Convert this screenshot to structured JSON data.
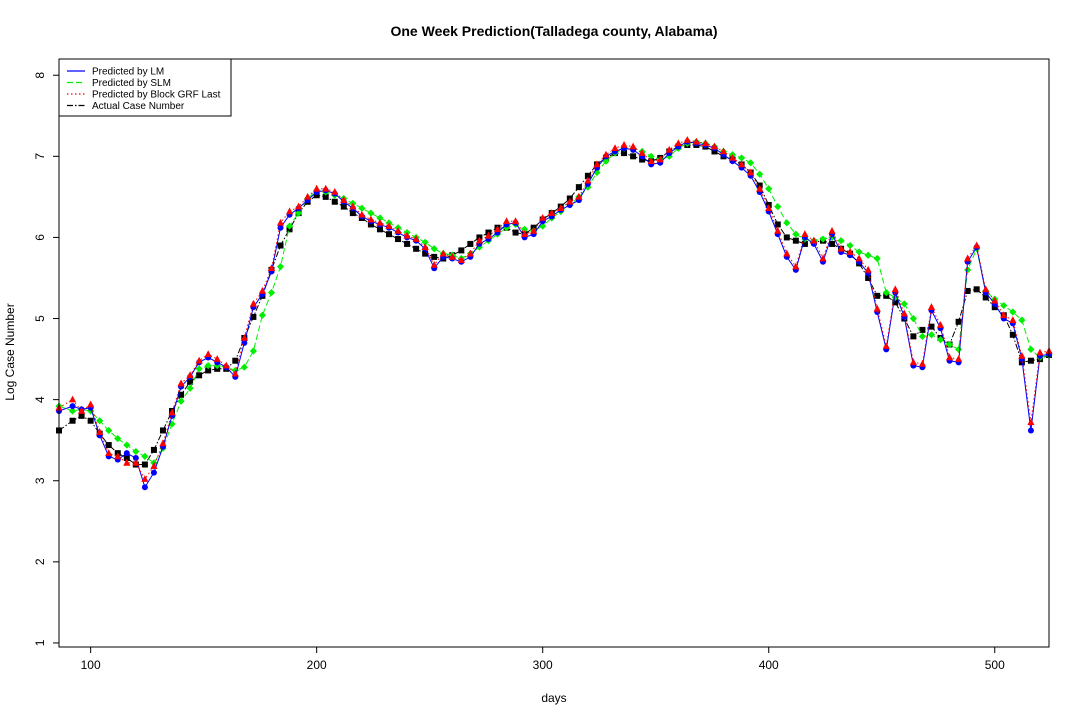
{
  "chart_data": {
    "type": "scatter",
    "title": "One Week Prediction(Talladega county, Alabama)",
    "xlabel": "days",
    "ylabel": "Log Case Number",
    "xlim": [
      86,
      524
    ],
    "ylim": [
      0.95,
      8.2
    ],
    "x_ticks": [
      100,
      200,
      300,
      400,
      500
    ],
    "y_ticks": [
      1,
      2,
      3,
      4,
      5,
      6,
      7,
      8
    ],
    "grid": false,
    "legend_position": "top-left",
    "series": [
      {
        "name": "Actual Case Number",
        "color": "#000000",
        "marker": "square",
        "line": "dashdot",
        "x": [
          86,
          92,
          96,
          100,
          104,
          108,
          112,
          116,
          120,
          124,
          128,
          132,
          136,
          140,
          144,
          148,
          152,
          156,
          160,
          164,
          168,
          172,
          176,
          180,
          184,
          188,
          192,
          196,
          200,
          204,
          208,
          212,
          216,
          220,
          224,
          228,
          232,
          236,
          240,
          244,
          248,
          252,
          256,
          260,
          264,
          268,
          272,
          276,
          280,
          284,
          288,
          292,
          296,
          300,
          304,
          308,
          312,
          316,
          320,
          324,
          328,
          332,
          336,
          340,
          344,
          348,
          352,
          356,
          360,
          364,
          368,
          372,
          376,
          380,
          384,
          388,
          392,
          396,
          400,
          404,
          408,
          412,
          416,
          420,
          424,
          428,
          432,
          436,
          440,
          444,
          448,
          452,
          456,
          460,
          464,
          468,
          472,
          476,
          480,
          484,
          488,
          492,
          496,
          500,
          504,
          508,
          512,
          516,
          520,
          524
        ],
        "y": [
          3.62,
          3.74,
          3.8,
          3.74,
          3.58,
          3.44,
          3.34,
          3.28,
          3.2,
          3.2,
          3.38,
          3.62,
          3.86,
          4.06,
          4.22,
          4.3,
          4.36,
          4.38,
          4.38,
          4.48,
          4.76,
          5.02,
          5.28,
          5.6,
          5.9,
          6.1,
          6.3,
          6.44,
          6.52,
          6.5,
          6.44,
          6.38,
          6.3,
          6.24,
          6.16,
          6.1,
          6.04,
          5.98,
          5.92,
          5.86,
          5.8,
          5.76,
          5.74,
          5.78,
          5.84,
          5.92,
          6.0,
          6.06,
          6.12,
          6.12,
          6.06,
          6.04,
          6.12,
          6.22,
          6.3,
          6.38,
          6.48,
          6.62,
          6.76,
          6.9,
          6.98,
          7.04,
          7.04,
          7.0,
          6.96,
          6.94,
          6.98,
          7.06,
          7.12,
          7.14,
          7.14,
          7.12,
          7.06,
          7.0,
          6.96,
          6.9,
          6.8,
          6.64,
          6.4,
          6.16,
          6.0,
          5.96,
          5.92,
          5.94,
          5.96,
          5.92,
          5.86,
          5.8,
          5.68,
          5.5,
          5.28,
          5.28,
          5.2,
          5.0,
          4.78,
          4.86,
          4.9,
          4.76,
          4.68,
          4.96,
          5.34,
          5.36,
          5.26,
          5.14,
          5.04,
          4.8,
          4.46,
          4.48,
          4.5,
          4.55
        ]
      },
      {
        "name": "Predicted by SLM",
        "color": "#00ee00",
        "marker": "diamond",
        "line": "dashed",
        "x": [
          86,
          92,
          96,
          100,
          104,
          108,
          112,
          116,
          120,
          124,
          128,
          132,
          136,
          140,
          144,
          148,
          152,
          156,
          160,
          164,
          168,
          172,
          176,
          180,
          184,
          188,
          192,
          196,
          200,
          204,
          208,
          212,
          216,
          220,
          224,
          228,
          232,
          236,
          240,
          244,
          248,
          252,
          256,
          260,
          264,
          268,
          272,
          276,
          280,
          284,
          288,
          292,
          296,
          300,
          304,
          308,
          312,
          316,
          320,
          324,
          328,
          332,
          336,
          340,
          344,
          348,
          352,
          356,
          360,
          364,
          368,
          372,
          376,
          380,
          384,
          388,
          392,
          396,
          400,
          404,
          408,
          412,
          416,
          420,
          424,
          428,
          432,
          436,
          440,
          444,
          448,
          452,
          456,
          460,
          464,
          468,
          472,
          476,
          480,
          484,
          488,
          492,
          496,
          500,
          504,
          508,
          512,
          516,
          520,
          524
        ],
        "y": [
          3.92,
          3.86,
          3.88,
          3.86,
          3.74,
          3.62,
          3.52,
          3.44,
          3.36,
          3.3,
          3.22,
          3.4,
          3.7,
          3.98,
          4.14,
          4.38,
          4.42,
          4.42,
          4.4,
          4.36,
          4.4,
          4.6,
          5.04,
          5.32,
          5.64,
          6.14,
          6.3,
          6.48,
          6.58,
          6.56,
          6.52,
          6.48,
          6.42,
          6.36,
          6.3,
          6.24,
          6.18,
          6.12,
          6.06,
          6.0,
          5.94,
          5.86,
          5.8,
          5.78,
          5.74,
          5.8,
          5.88,
          5.96,
          6.04,
          6.12,
          6.16,
          6.1,
          6.08,
          6.14,
          6.24,
          6.32,
          6.4,
          6.5,
          6.62,
          6.8,
          6.94,
          7.04,
          7.1,
          7.1,
          7.06,
          7.0,
          6.96,
          7.0,
          7.1,
          7.16,
          7.18,
          7.16,
          7.12,
          7.06,
          7.02,
          6.98,
          6.92,
          6.78,
          6.6,
          6.38,
          6.18,
          6.04,
          5.98,
          5.96,
          5.98,
          6.0,
          5.96,
          5.9,
          5.82,
          5.78,
          5.74,
          5.32,
          5.26,
          5.18,
          5.0,
          4.78,
          4.8,
          4.74,
          4.68,
          4.62,
          5.6,
          5.86,
          5.34,
          5.24,
          5.16,
          5.08,
          4.98,
          4.62,
          4.52,
          4.55
        ]
      },
      {
        "name": "Predicted by LM",
        "color": "#0000ff",
        "marker": "circle",
        "line": "solid",
        "x": [
          86,
          92,
          96,
          100,
          104,
          108,
          112,
          116,
          120,
          124,
          128,
          132,
          136,
          140,
          144,
          148,
          152,
          156,
          160,
          164,
          168,
          172,
          176,
          180,
          184,
          188,
          192,
          196,
          200,
          204,
          208,
          212,
          216,
          220,
          224,
          228,
          232,
          236,
          240,
          244,
          248,
          252,
          256,
          260,
          264,
          268,
          272,
          276,
          280,
          284,
          288,
          292,
          296,
          300,
          304,
          308,
          312,
          316,
          320,
          324,
          328,
          332,
          336,
          340,
          344,
          348,
          352,
          356,
          360,
          364,
          368,
          372,
          376,
          380,
          384,
          388,
          392,
          396,
          400,
          404,
          408,
          412,
          416,
          420,
          424,
          428,
          432,
          436,
          440,
          444,
          448,
          452,
          456,
          460,
          464,
          468,
          472,
          476,
          480,
          484,
          488,
          492,
          496,
          500,
          504,
          508,
          512,
          516,
          520,
          524
        ],
        "y": [
          3.86,
          3.92,
          3.88,
          3.9,
          3.56,
          3.3,
          3.26,
          3.34,
          3.28,
          2.92,
          3.1,
          3.42,
          3.8,
          4.16,
          4.28,
          4.46,
          4.52,
          4.46,
          4.4,
          4.28,
          4.7,
          5.14,
          5.3,
          5.58,
          6.12,
          6.28,
          6.36,
          6.46,
          6.56,
          6.58,
          6.54,
          6.44,
          6.36,
          6.26,
          6.2,
          6.16,
          6.12,
          6.06,
          6.0,
          5.96,
          5.86,
          5.62,
          5.76,
          5.74,
          5.7,
          5.76,
          5.92,
          5.98,
          6.06,
          6.16,
          6.18,
          6.0,
          6.04,
          6.2,
          6.26,
          6.34,
          6.4,
          6.46,
          6.66,
          6.86,
          7.0,
          7.06,
          7.1,
          7.08,
          7.0,
          6.9,
          6.92,
          7.04,
          7.12,
          7.18,
          7.16,
          7.14,
          7.1,
          7.02,
          6.94,
          6.86,
          6.76,
          6.56,
          6.32,
          6.04,
          5.76,
          5.6,
          6.0,
          5.92,
          5.7,
          6.04,
          5.82,
          5.78,
          5.7,
          5.56,
          5.08,
          4.62,
          5.32,
          5.02,
          4.42,
          4.4,
          5.1,
          4.88,
          4.48,
          4.46,
          5.7,
          5.88,
          5.32,
          5.18,
          5.0,
          4.94,
          4.5,
          3.62,
          4.54,
          4.56
        ]
      },
      {
        "name": "Predicted by Block GRF Last",
        "color": "#ff0000",
        "marker": "triangle",
        "line": "dotted",
        "x": [
          86,
          92,
          96,
          100,
          104,
          108,
          112,
          116,
          120,
          124,
          128,
          132,
          136,
          140,
          144,
          148,
          152,
          156,
          160,
          164,
          168,
          172,
          176,
          180,
          184,
          188,
          192,
          196,
          200,
          204,
          208,
          212,
          216,
          220,
          224,
          228,
          232,
          236,
          240,
          244,
          248,
          252,
          256,
          260,
          264,
          268,
          272,
          276,
          280,
          284,
          288,
          292,
          296,
          300,
          304,
          308,
          312,
          316,
          320,
          324,
          328,
          332,
          336,
          340,
          344,
          348,
          352,
          356,
          360,
          364,
          368,
          372,
          376,
          380,
          384,
          388,
          392,
          396,
          400,
          404,
          408,
          412,
          416,
          420,
          424,
          428,
          432,
          436,
          440,
          444,
          448,
          452,
          456,
          460,
          464,
          468,
          472,
          476,
          480,
          484,
          488,
          492,
          496,
          500,
          504,
          508,
          512,
          516,
          520,
          524
        ],
        "y": [
          3.9,
          4.0,
          3.86,
          3.94,
          3.6,
          3.34,
          3.3,
          3.22,
          3.22,
          3.02,
          3.18,
          3.46,
          3.84,
          4.2,
          4.3,
          4.48,
          4.56,
          4.5,
          4.42,
          4.32,
          4.76,
          5.18,
          5.34,
          5.62,
          6.18,
          6.32,
          6.38,
          6.5,
          6.6,
          6.6,
          6.56,
          6.46,
          6.38,
          6.28,
          6.22,
          6.18,
          6.14,
          6.08,
          6.02,
          5.98,
          5.88,
          5.66,
          5.8,
          5.76,
          5.72,
          5.8,
          5.96,
          6.02,
          6.1,
          6.2,
          6.2,
          6.04,
          6.08,
          6.24,
          6.3,
          6.36,
          6.44,
          6.5,
          6.7,
          6.9,
          7.02,
          7.1,
          7.14,
          7.12,
          7.04,
          6.94,
          6.96,
          7.08,
          7.16,
          7.2,
          7.18,
          7.16,
          7.12,
          7.06,
          6.98,
          6.9,
          6.8,
          6.6,
          6.36,
          6.08,
          5.8,
          5.64,
          6.04,
          5.96,
          5.74,
          6.08,
          5.86,
          5.82,
          5.74,
          5.6,
          5.12,
          4.66,
          5.36,
          5.06,
          4.46,
          4.44,
          5.14,
          4.92,
          4.52,
          4.5,
          5.74,
          5.9,
          5.36,
          5.22,
          5.04,
          4.98,
          4.54,
          3.72,
          4.58,
          4.6
        ]
      }
    ]
  }
}
